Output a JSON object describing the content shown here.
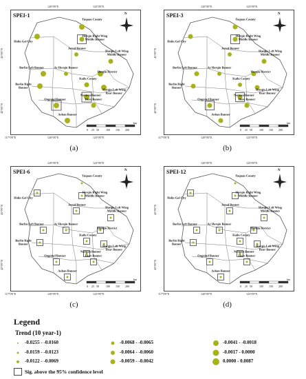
{
  "panels": [
    {
      "tag": "SPEI-1",
      "caption": "(a)"
    },
    {
      "tag": "SPEI-3",
      "caption": "(b)"
    },
    {
      "tag": "SPEI-6",
      "caption": "(c)"
    },
    {
      "tag": "SPEI-12",
      "caption": "(d)"
    }
  ],
  "axes": {
    "top": [
      "120°0'0\"E",
      "123°0'0\"E"
    ],
    "bottom": [
      "117°0'0\"E",
      "120°0'0\"E",
      "123°0'0\"E"
    ],
    "left": [
      "45°0'0\"N",
      "42°0'0\"N"
    ],
    "right": [
      "45°0'0\"N",
      "42°0'0\"N"
    ]
  },
  "north_label": "N",
  "scale": {
    "ticks": [
      "0",
      "25",
      "50",
      "100",
      "150",
      "200"
    ],
    "unit": "km"
  },
  "stations": [
    {
      "name": "Tuquan County"
    },
    {
      "name": "Horqin Right Wing Middle Banner"
    },
    {
      "name": "Holin Gol City"
    },
    {
      "name": "Jarud Banner"
    },
    {
      "name": "Horqin Left Wing Middle Banner"
    },
    {
      "name": "Barlin Left Banner"
    },
    {
      "name": "Ar Horqin Banner"
    },
    {
      "name": "Horqin District"
    },
    {
      "name": "Kailu County"
    },
    {
      "name": "Barlin Right Banner"
    },
    {
      "name": "Horqin Left Wing Rear Banner"
    },
    {
      "name": "Naiman Banner"
    },
    {
      "name": "Ongniud Banner"
    },
    {
      "name": "Hure Banner"
    },
    {
      "name": "Aohan Banner"
    }
  ],
  "legend": {
    "title": "Legend",
    "subtitle": "Trend (10 year-1)",
    "items": [
      "-0.0255 - -0.0160",
      "-0.0159 - -0.0123",
      "-0.0122 - -0.0069",
      "-0.0068 - -0.0065",
      "-0.0064 - -0.0060",
      "-0.0059 - -0.0042",
      "-0.0041 - -0.0018",
      "-0.0017 - 0.0000",
      "0.0000 - 0.0087"
    ],
    "sig_label": "Sig. above the 95% confidence level"
  },
  "colors": {
    "dot": "#a8b21c",
    "outline": "#555555"
  }
}
